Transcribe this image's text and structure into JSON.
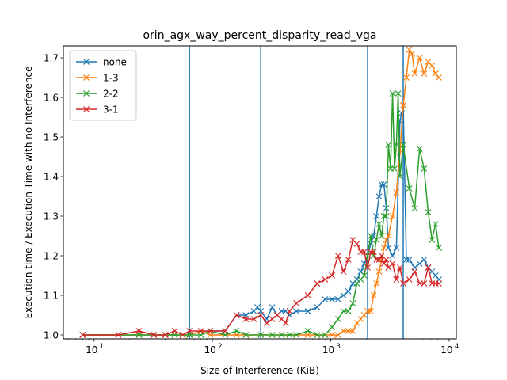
{
  "chart_data": {
    "type": "line",
    "title": "orin_agx_way_percent_disparity_read_vga",
    "xlabel": "Size of Interference (KiB)",
    "ylabel": "Execution time / Execution Time with no Interference",
    "xscale": "log",
    "xlim": [
      5.5,
      11500
    ],
    "ylim": [
      0.99,
      1.73
    ],
    "x_ticks": [
      {
        "value": 10,
        "base": "10",
        "exp": "1"
      },
      {
        "value": 100,
        "base": "10",
        "exp": "2"
      },
      {
        "value": 1000,
        "base": "10",
        "exp": "3"
      },
      {
        "value": 10000,
        "base": "10",
        "exp": "4"
      }
    ],
    "y_ticks": [
      "1.0",
      "1.1",
      "1.2",
      "1.3",
      "1.4",
      "1.5",
      "1.6",
      "1.7"
    ],
    "y_tick_values": [
      1.0,
      1.1,
      1.2,
      1.3,
      1.4,
      1.5,
      1.6,
      1.7
    ],
    "vlines": [
      64,
      256,
      2048,
      4096
    ],
    "vline_color": "#1f77b4",
    "legend_position": "upper-left",
    "grid": false,
    "series": [
      {
        "name": "none",
        "color": "#1f77b4",
        "points": [
          [
            8,
            1.0
          ],
          [
            16,
            1.0
          ],
          [
            24,
            1.0
          ],
          [
            32,
            1.0
          ],
          [
            40,
            1.0
          ],
          [
            48,
            1.0
          ],
          [
            56,
            1.0
          ],
          [
            64,
            1.0
          ],
          [
            80,
            1.01
          ],
          [
            96,
            1.01
          ],
          [
            128,
            1.01
          ],
          [
            160,
            1.05
          ],
          [
            192,
            1.05
          ],
          [
            224,
            1.06
          ],
          [
            240,
            1.07
          ],
          [
            256,
            1.06
          ],
          [
            288,
            1.04
          ],
          [
            320,
            1.07
          ],
          [
            352,
            1.05
          ],
          [
            384,
            1.06
          ],
          [
            416,
            1.06
          ],
          [
            448,
            1.05
          ],
          [
            512,
            1.06
          ],
          [
            640,
            1.06
          ],
          [
            768,
            1.07
          ],
          [
            896,
            1.09
          ],
          [
            1024,
            1.09
          ],
          [
            1152,
            1.09
          ],
          [
            1280,
            1.1
          ],
          [
            1408,
            1.11
          ],
          [
            1536,
            1.13
          ],
          [
            1664,
            1.14
          ],
          [
            1792,
            1.16
          ],
          [
            1920,
            1.18
          ],
          [
            2048,
            1.2
          ],
          [
            2176,
            1.23
          ],
          [
            2304,
            1.25
          ],
          [
            2432,
            1.3
          ],
          [
            2560,
            1.35
          ],
          [
            2688,
            1.38
          ],
          [
            2816,
            1.38
          ],
          [
            2944,
            1.32
          ],
          [
            3072,
            1.22
          ],
          [
            3328,
            1.2
          ],
          [
            3584,
            1.22
          ],
          [
            3840,
            1.54
          ],
          [
            3968,
            1.56
          ],
          [
            4096,
            1.58
          ],
          [
            4352,
            1.19
          ],
          [
            4608,
            1.19
          ],
          [
            5120,
            1.17
          ],
          [
            5632,
            1.18
          ],
          [
            6144,
            1.19
          ],
          [
            6656,
            1.17
          ],
          [
            7168,
            1.16
          ],
          [
            7680,
            1.15
          ],
          [
            8192,
            1.14
          ]
        ]
      },
      {
        "name": "1-3",
        "color": "#ff7f0e",
        "points": [
          [
            8,
            1.0
          ],
          [
            16,
            1.0
          ],
          [
            24,
            1.0
          ],
          [
            32,
            1.0
          ],
          [
            40,
            1.0
          ],
          [
            48,
            1.0
          ],
          [
            56,
            1.0
          ],
          [
            64,
            1.0
          ],
          [
            80,
            1.01
          ],
          [
            96,
            1.0
          ],
          [
            128,
            1.0
          ],
          [
            160,
            1.0
          ],
          [
            192,
            1.0
          ],
          [
            256,
            1.0
          ],
          [
            320,
            1.0
          ],
          [
            384,
            1.0
          ],
          [
            448,
            1.0
          ],
          [
            512,
            1.0
          ],
          [
            640,
            1.0
          ],
          [
            768,
            1.0
          ],
          [
            896,
            1.0
          ],
          [
            1024,
            1.0
          ],
          [
            1152,
            1.0
          ],
          [
            1280,
            1.01
          ],
          [
            1408,
            1.01
          ],
          [
            1536,
            1.01
          ],
          [
            1664,
            1.03
          ],
          [
            1792,
            1.04
          ],
          [
            1920,
            1.05
          ],
          [
            2048,
            1.06
          ],
          [
            2176,
            1.06
          ],
          [
            2304,
            1.1
          ],
          [
            2432,
            1.13
          ],
          [
            2560,
            1.16
          ],
          [
            2688,
            1.19
          ],
          [
            2816,
            1.22
          ],
          [
            2944,
            1.24
          ],
          [
            3072,
            1.25
          ],
          [
            3328,
            1.3
          ],
          [
            3584,
            1.36
          ],
          [
            3840,
            1.46
          ],
          [
            4096,
            1.58
          ],
          [
            4352,
            1.65
          ],
          [
            4608,
            1.72
          ],
          [
            4864,
            1.71
          ],
          [
            5120,
            1.66
          ],
          [
            5632,
            1.7
          ],
          [
            6144,
            1.66
          ],
          [
            6656,
            1.69
          ],
          [
            7168,
            1.68
          ],
          [
            7680,
            1.66
          ],
          [
            8192,
            1.65
          ]
        ]
      },
      {
        "name": "2-2",
        "color": "#2ca02c",
        "points": [
          [
            8,
            1.0
          ],
          [
            16,
            1.0
          ],
          [
            24,
            1.0
          ],
          [
            32,
            1.0
          ],
          [
            40,
            1.0
          ],
          [
            48,
            1.0
          ],
          [
            56,
            1.0
          ],
          [
            64,
            1.0
          ],
          [
            80,
            1.0
          ],
          [
            96,
            1.01
          ],
          [
            128,
            1.0
          ],
          [
            160,
            1.01
          ],
          [
            192,
            1.0
          ],
          [
            256,
            1.0
          ],
          [
            320,
            1.0
          ],
          [
            384,
            1.0
          ],
          [
            448,
            1.0
          ],
          [
            512,
            1.0
          ],
          [
            640,
            1.01
          ],
          [
            768,
            1.0
          ],
          [
            896,
            1.0
          ],
          [
            1024,
            1.02
          ],
          [
            1152,
            1.04
          ],
          [
            1280,
            1.06
          ],
          [
            1408,
            1.06
          ],
          [
            1536,
            1.08
          ],
          [
            1664,
            1.13
          ],
          [
            1792,
            1.14
          ],
          [
            1920,
            1.15
          ],
          [
            2048,
            1.2
          ],
          [
            2176,
            1.25
          ],
          [
            2304,
            1.2
          ],
          [
            2432,
            1.24
          ],
          [
            2560,
            1.28
          ],
          [
            2688,
            1.25
          ],
          [
            2816,
            1.3
          ],
          [
            2944,
            1.3
          ],
          [
            3072,
            1.48
          ],
          [
            3200,
            1.42
          ],
          [
            3328,
            1.61
          ],
          [
            3456,
            1.42
          ],
          [
            3584,
            1.48
          ],
          [
            3712,
            1.61
          ],
          [
            3840,
            1.4
          ],
          [
            4096,
            1.48
          ],
          [
            4608,
            1.37
          ],
          [
            5120,
            1.32
          ],
          [
            5632,
            1.47
          ],
          [
            6144,
            1.42
          ],
          [
            6656,
            1.31
          ],
          [
            7168,
            1.24
          ],
          [
            7680,
            1.28
          ],
          [
            8192,
            1.22
          ]
        ]
      },
      {
        "name": "3-1",
        "color": "#d62728",
        "points": [
          [
            8,
            1.0
          ],
          [
            16,
            1.0
          ],
          [
            24,
            1.01
          ],
          [
            32,
            1.0
          ],
          [
            40,
            1.0
          ],
          [
            48,
            1.01
          ],
          [
            56,
            1.0
          ],
          [
            64,
            1.01
          ],
          [
            80,
            1.01
          ],
          [
            96,
            1.01
          ],
          [
            128,
            1.01
          ],
          [
            160,
            1.05
          ],
          [
            192,
            1.04
          ],
          [
            224,
            1.04
          ],
          [
            256,
            1.05
          ],
          [
            288,
            1.03
          ],
          [
            320,
            1.04
          ],
          [
            352,
            1.05
          ],
          [
            384,
            1.04
          ],
          [
            416,
            1.03
          ],
          [
            448,
            1.06
          ],
          [
            512,
            1.08
          ],
          [
            640,
            1.1
          ],
          [
            768,
            1.13
          ],
          [
            896,
            1.14
          ],
          [
            1024,
            1.15
          ],
          [
            1152,
            1.2
          ],
          [
            1280,
            1.16
          ],
          [
            1408,
            1.19
          ],
          [
            1536,
            1.24
          ],
          [
            1664,
            1.23
          ],
          [
            1792,
            1.21
          ],
          [
            1920,
            1.21
          ],
          [
            2048,
            1.17
          ],
          [
            2176,
            1.21
          ],
          [
            2304,
            1.21
          ],
          [
            2432,
            1.19
          ],
          [
            2560,
            1.19
          ],
          [
            2688,
            1.2
          ],
          [
            2816,
            1.18
          ],
          [
            2944,
            1.19
          ],
          [
            3072,
            1.17
          ],
          [
            3328,
            1.18
          ],
          [
            3584,
            1.14
          ],
          [
            3840,
            1.17
          ],
          [
            4096,
            1.13
          ],
          [
            4608,
            1.14
          ],
          [
            5120,
            1.16
          ],
          [
            5632,
            1.13
          ],
          [
            6144,
            1.13
          ],
          [
            6656,
            1.17
          ],
          [
            7168,
            1.13
          ],
          [
            7680,
            1.13
          ],
          [
            8192,
            1.13
          ]
        ]
      }
    ]
  }
}
